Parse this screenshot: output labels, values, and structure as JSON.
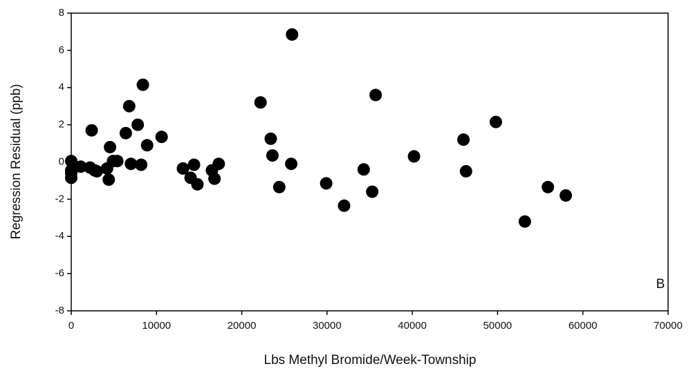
{
  "chart_data": {
    "type": "scatter",
    "x_label": "Lbs Methyl Bromide/Week-Township",
    "y_label": "Regression Residual (ppb)",
    "annotation": "B",
    "color": "#000000",
    "x": [
      0,
      0,
      0,
      0,
      1100,
      2200,
      2400,
      2750,
      3000,
      4200,
      4400,
      4550,
      4900,
      5400,
      6400,
      6800,
      7000,
      7800,
      8200,
      8400,
      8900,
      10600,
      13100,
      14000,
      14400,
      14800,
      16500,
      16800,
      17300,
      22200,
      23400,
      23600,
      24400,
      25800,
      25900,
      29900,
      32000,
      34300,
      35300,
      35700,
      40200,
      46000,
      46300,
      49800,
      53200,
      55900,
      58000
    ],
    "y": [
      0.05,
      -0.45,
      -0.85,
      -0.6,
      -0.25,
      -0.3,
      1.7,
      -0.45,
      -0.5,
      -0.35,
      -0.95,
      0.8,
      0.05,
      0.05,
      1.55,
      3.0,
      -0.1,
      2.0,
      -0.15,
      4.15,
      0.9,
      1.35,
      -0.35,
      -0.85,
      -0.15,
      -1.2,
      -0.45,
      -0.9,
      -0.1,
      3.2,
      1.25,
      0.35,
      -1.35,
      -0.1,
      6.85,
      -1.15,
      -2.35,
      -0.4,
      -1.6,
      3.6,
      0.3,
      1.2,
      -0.5,
      2.15,
      -3.2,
      -1.35,
      -1.8
    ],
    "xlim": [
      0,
      70000
    ],
    "xticks": [
      0,
      10000,
      20000,
      30000,
      40000,
      50000,
      60000,
      70000
    ],
    "ylim": [
      -8,
      8
    ],
    "yticks": [
      -8,
      -6,
      -4,
      -2,
      0,
      2,
      4,
      6,
      8
    ]
  }
}
